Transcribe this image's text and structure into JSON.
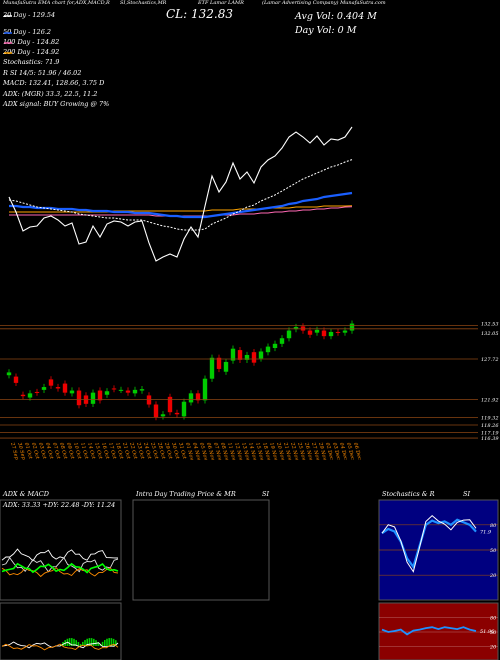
{
  "header": {
    "left_line": "MunafaSutra  EMA chart for,ADX,MACD,R",
    "mid_line": "SI,Stochastics,MR",
    "close_label": "CL: 132.83",
    "symbol_line": "ETF Lamar LAMR",
    "company_line": "(Lamar Advertising Company) MunafaSutra.com",
    "avg_vol": "Avg Vol: 0.404  M",
    "day_vol": "Day Vol: 0  M"
  },
  "legend": {
    "ema20": "20  Day - 129.54",
    "ema50": "50  Day - 126.2",
    "ema100": "100  Day - 124.82",
    "ema200": "200  Day - 124.92",
    "stoch": "Stochastics: 71.9",
    "rsi": "R                    SI 14/5: 51.96  / 46.02",
    "macd": "MACD: 132.41, 128.66, 3.75 D",
    "adx": "ADX:                          (MGR) 33.3,  22.5,  11.2",
    "adx_signal": "ADX  signal:                               BUY Growing @ 7%"
  },
  "price_axis": {
    "ticks": [
      "132.53",
      "132.05",
      "127.72",
      "121.92",
      "119.32",
      "118.26",
      "117.19",
      "116.39"
    ]
  },
  "dates": [
    "27 Sep",
    "30 Sep",
    "01 Oct",
    "02 Oct",
    "03 Oct",
    "04 Oct",
    "07 Oct",
    "08 Oct",
    "09 Oct",
    "10 Oct",
    "11 Oct",
    "14 Oct",
    "15 Oct",
    "16 Oct",
    "17 Oct",
    "18 Oct",
    "21 Oct",
    "22 Oct",
    "23 Oct",
    "24 Oct",
    "25 Oct",
    "28 Oct",
    "29 Oct",
    "30 Oct",
    "31 Oct",
    "01 Nov",
    "04 Nov",
    "05 Nov",
    "06 Nov",
    "07 Nov",
    "08 Nov",
    "11 Nov",
    "12 Nov",
    "13 Nov",
    "14 Nov",
    "15 Nov",
    "18 Nov",
    "19 Nov",
    "20 Nov",
    "21 Nov",
    "22 Nov",
    "25 Nov",
    "26 Nov",
    "27 Nov",
    "29 Nov",
    "02 Dec",
    "03 Dec",
    "04 Dec",
    "05 Dec",
    "06 Dec"
  ],
  "panels": {
    "adx_title": "ADX  & MACD",
    "adx_values": "ADX: 33.33  +DY: 22.48  -DY: 11.24",
    "intra_title": "Intra  Day Trading Price  & MR",
    "intra_suffix": "SI",
    "stoch_title": "Stochastics & R",
    "stoch_suffix": "SI",
    "stoch_ticks": [
      "80",
      "50",
      "20"
    ],
    "rsi_ticks": [
      "80",
      "50",
      "20"
    ],
    "stoch_value": "71.9",
    "rsi_value": "51.96"
  },
  "colors": {
    "up": "#00cc00",
    "down": "#ee0000",
    "ema20": "#ffffff",
    "ema50": "#1a5fff",
    "ema100": "#ff69b4",
    "ema200": "#ffa500",
    "panel_border": "#555555",
    "stoch_bg": "#000080",
    "rsi_bg": "#8b0000"
  },
  "chart_data": [
    {
      "type": "candlestick",
      "title": "ETF Lamar LAMR",
      "x": [
        "27 Sep",
        "30 Sep",
        "01 Oct",
        "02 Oct",
        "03 Oct",
        "04 Oct",
        "07 Oct",
        "08 Oct",
        "09 Oct",
        "10 Oct",
        "11 Oct",
        "14 Oct",
        "15 Oct",
        "16 Oct",
        "17 Oct",
        "18 Oct",
        "21 Oct",
        "22 Oct",
        "23 Oct",
        "24 Oct",
        "25 Oct",
        "28 Oct",
        "29 Oct",
        "30 Oct",
        "31 Oct",
        "01 Nov",
        "04 Nov",
        "05 Nov",
        "06 Nov",
        "07 Nov",
        "08 Nov",
        "11 Nov",
        "12 Nov",
        "13 Nov",
        "14 Nov",
        "15 Nov",
        "18 Nov",
        "19 Nov",
        "20 Nov",
        "21 Nov",
        "22 Nov",
        "25 Nov",
        "26 Nov",
        "27 Nov",
        "29 Nov",
        "02 Dec",
        "03 Dec",
        "04 Dec",
        "05 Dec",
        "06 Dec"
      ],
      "open": [
        125.4,
        125.2,
        122.6,
        122.2,
        123.0,
        123.3,
        124.8,
        123.7,
        124.2,
        122.8,
        123.2,
        122.5,
        121.3,
        123.2,
        122.6,
        123.5,
        123.3,
        123.2,
        122.8,
        123.2,
        122.5,
        121.2,
        119.5,
        122.3,
        120.0,
        119.5,
        121.5,
        122.8,
        121.8,
        124.9,
        127.9,
        125.9,
        127.5,
        129.0,
        127.6,
        128.7,
        127.8,
        128.7,
        129.3,
        129.9,
        130.7,
        132.0,
        132.4,
        131.8,
        131.5,
        131.8,
        131.0,
        131.6,
        131.5,
        131.8
      ],
      "close": [
        125.8,
        124.3,
        122.4,
        122.8,
        122.9,
        123.7,
        123.9,
        123.5,
        122.9,
        123.2,
        121.1,
        121.3,
        122.9,
        121.8,
        123.1,
        123.4,
        123.3,
        122.9,
        123.3,
        123.4,
        121.2,
        119.4,
        119.8,
        120.1,
        119.8,
        121.6,
        122.8,
        121.8,
        124.9,
        127.9,
        126.3,
        127.3,
        129.2,
        127.6,
        128.3,
        127.2,
        128.8,
        129.5,
        129.9,
        130.7,
        131.8,
        132.3,
        131.8,
        131.2,
        131.9,
        131.0,
        131.6,
        131.5,
        131.8,
        132.8
      ],
      "ylim": [
        116.4,
        133.6
      ]
    },
    {
      "type": "line",
      "title": "EMA",
      "series": [
        {
          "name": "20  Day - 129.54",
          "values": [
            125.5,
            125.4,
            125.2,
            125.0,
            124.8,
            124.7,
            124.6,
            124.5,
            124.4,
            124.3,
            124.1,
            124.0,
            123.9,
            123.8,
            123.7,
            123.7,
            123.6,
            123.5,
            123.5,
            123.5,
            123.3,
            123.1,
            122.9,
            122.8,
            122.6,
            122.5,
            122.5,
            122.5,
            122.6,
            123.1,
            123.4,
            123.7,
            124.1,
            124.4,
            124.8,
            125.0,
            125.4,
            125.7,
            126.0,
            126.4,
            126.8,
            127.2,
            127.6,
            127.9,
            128.2,
            128.5,
            128.8,
            129.0,
            129.3,
            129.54
          ]
        },
        {
          "name": "50  Day - 126.2",
          "values": [
            124.9,
            124.9,
            124.8,
            124.8,
            124.7,
            124.7,
            124.7,
            124.6,
            124.6,
            124.6,
            124.5,
            124.5,
            124.4,
            124.4,
            124.4,
            124.3,
            124.3,
            124.3,
            124.2,
            124.2,
            124.2,
            124.1,
            124.0,
            123.9,
            123.9,
            123.8,
            123.8,
            123.8,
            123.8,
            123.9,
            124.0,
            124.1,
            124.2,
            124.3,
            124.4,
            124.5,
            124.6,
            124.7,
            124.8,
            124.9,
            125.1,
            125.2,
            125.4,
            125.5,
            125.6,
            125.8,
            125.9,
            126.0,
            126.1,
            126.2
          ]
        },
        {
          "name": "100  Day - 124.82",
          "values": [
            124.0,
            124.0,
            124.0,
            124.0,
            124.0,
            124.0,
            124.0,
            124.0,
            124.0,
            124.0,
            124.0,
            124.0,
            124.0,
            124.0,
            124.0,
            124.0,
            124.0,
            124.0,
            124.0,
            124.0,
            124.0,
            123.9,
            123.9,
            123.9,
            123.9,
            123.9,
            123.9,
            123.9,
            123.9,
            123.9,
            124.0,
            124.0,
            124.0,
            124.1,
            124.1,
            124.1,
            124.2,
            124.2,
            124.3,
            124.3,
            124.4,
            124.4,
            124.5,
            124.5,
            124.6,
            124.6,
            124.7,
            124.7,
            124.8,
            124.82
          ]
        },
        {
          "name": "200  Day - 124.92",
          "values": [
            124.3,
            124.3,
            124.3,
            124.3,
            124.3,
            124.3,
            124.3,
            124.3,
            124.3,
            124.3,
            124.3,
            124.3,
            124.3,
            124.3,
            124.3,
            124.4,
            124.4,
            124.4,
            124.4,
            124.4,
            124.4,
            124.4,
            124.4,
            124.4,
            124.4,
            124.4,
            124.4,
            124.4,
            124.4,
            124.5,
            124.5,
            124.5,
            124.5,
            124.6,
            124.6,
            124.6,
            124.6,
            124.7,
            124.7,
            124.7,
            124.7,
            124.8,
            124.8,
            124.8,
            124.8,
            124.9,
            124.9,
            124.9,
            124.9,
            124.92
          ]
        }
      ]
    },
    {
      "type": "line",
      "title": "Stochastics & RSI",
      "series": [
        {
          "name": "Stochastics: 71.9",
          "values": [
            70,
            75,
            72,
            60,
            40,
            30,
            55,
            80,
            85,
            82,
            84,
            80,
            86,
            83,
            80,
            71.9
          ]
        },
        {
          "name": "RSI",
          "values": [
            55,
            50,
            52,
            55,
            45,
            53,
            55,
            58,
            60,
            56,
            60,
            58,
            56,
            60,
            55,
            51.96
          ]
        }
      ],
      "ylim": [
        0,
        100
      ]
    }
  ]
}
